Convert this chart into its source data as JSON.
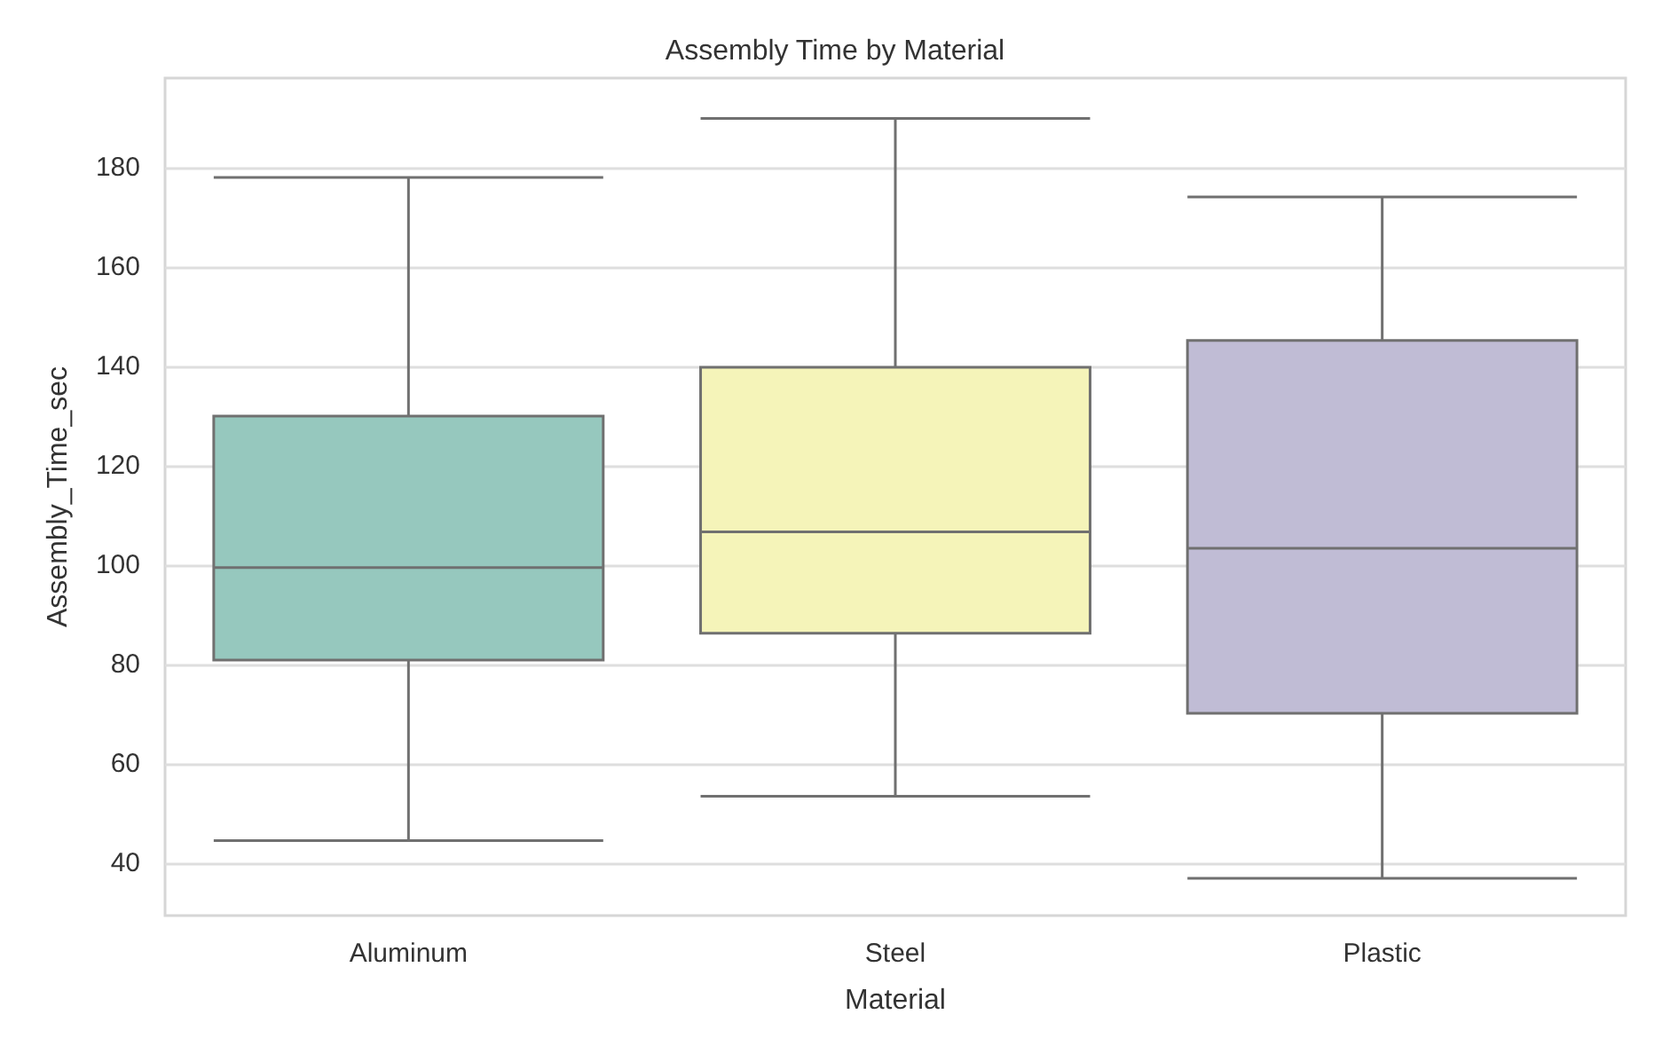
{
  "chart_data": {
    "type": "box",
    "title": "Assembly Time by Material",
    "xlabel": "Material",
    "ylabel": "Assembly_Time_sec",
    "categories": [
      "Aluminum",
      "Steel",
      "Plastic"
    ],
    "colors": [
      "#96c8be",
      "#f5f4b9",
      "#c0bcd5"
    ],
    "boxes": [
      {
        "low": 44.6,
        "q1": 80.9,
        "median": 99.5,
        "q3": 130,
        "high": 178
      },
      {
        "low": 53.5,
        "q1": 86.3,
        "median": 106.7,
        "q3": 139.8,
        "high": 189.9
      },
      {
        "low": 37,
        "q1": 70.2,
        "median": 103.4,
        "q3": 145.2,
        "high": 174.1
      }
    ],
    "ylim": [
      29.5,
      198
    ],
    "yticks": [
      40,
      60,
      80,
      100,
      120,
      140,
      160,
      180
    ],
    "grid": "y"
  }
}
